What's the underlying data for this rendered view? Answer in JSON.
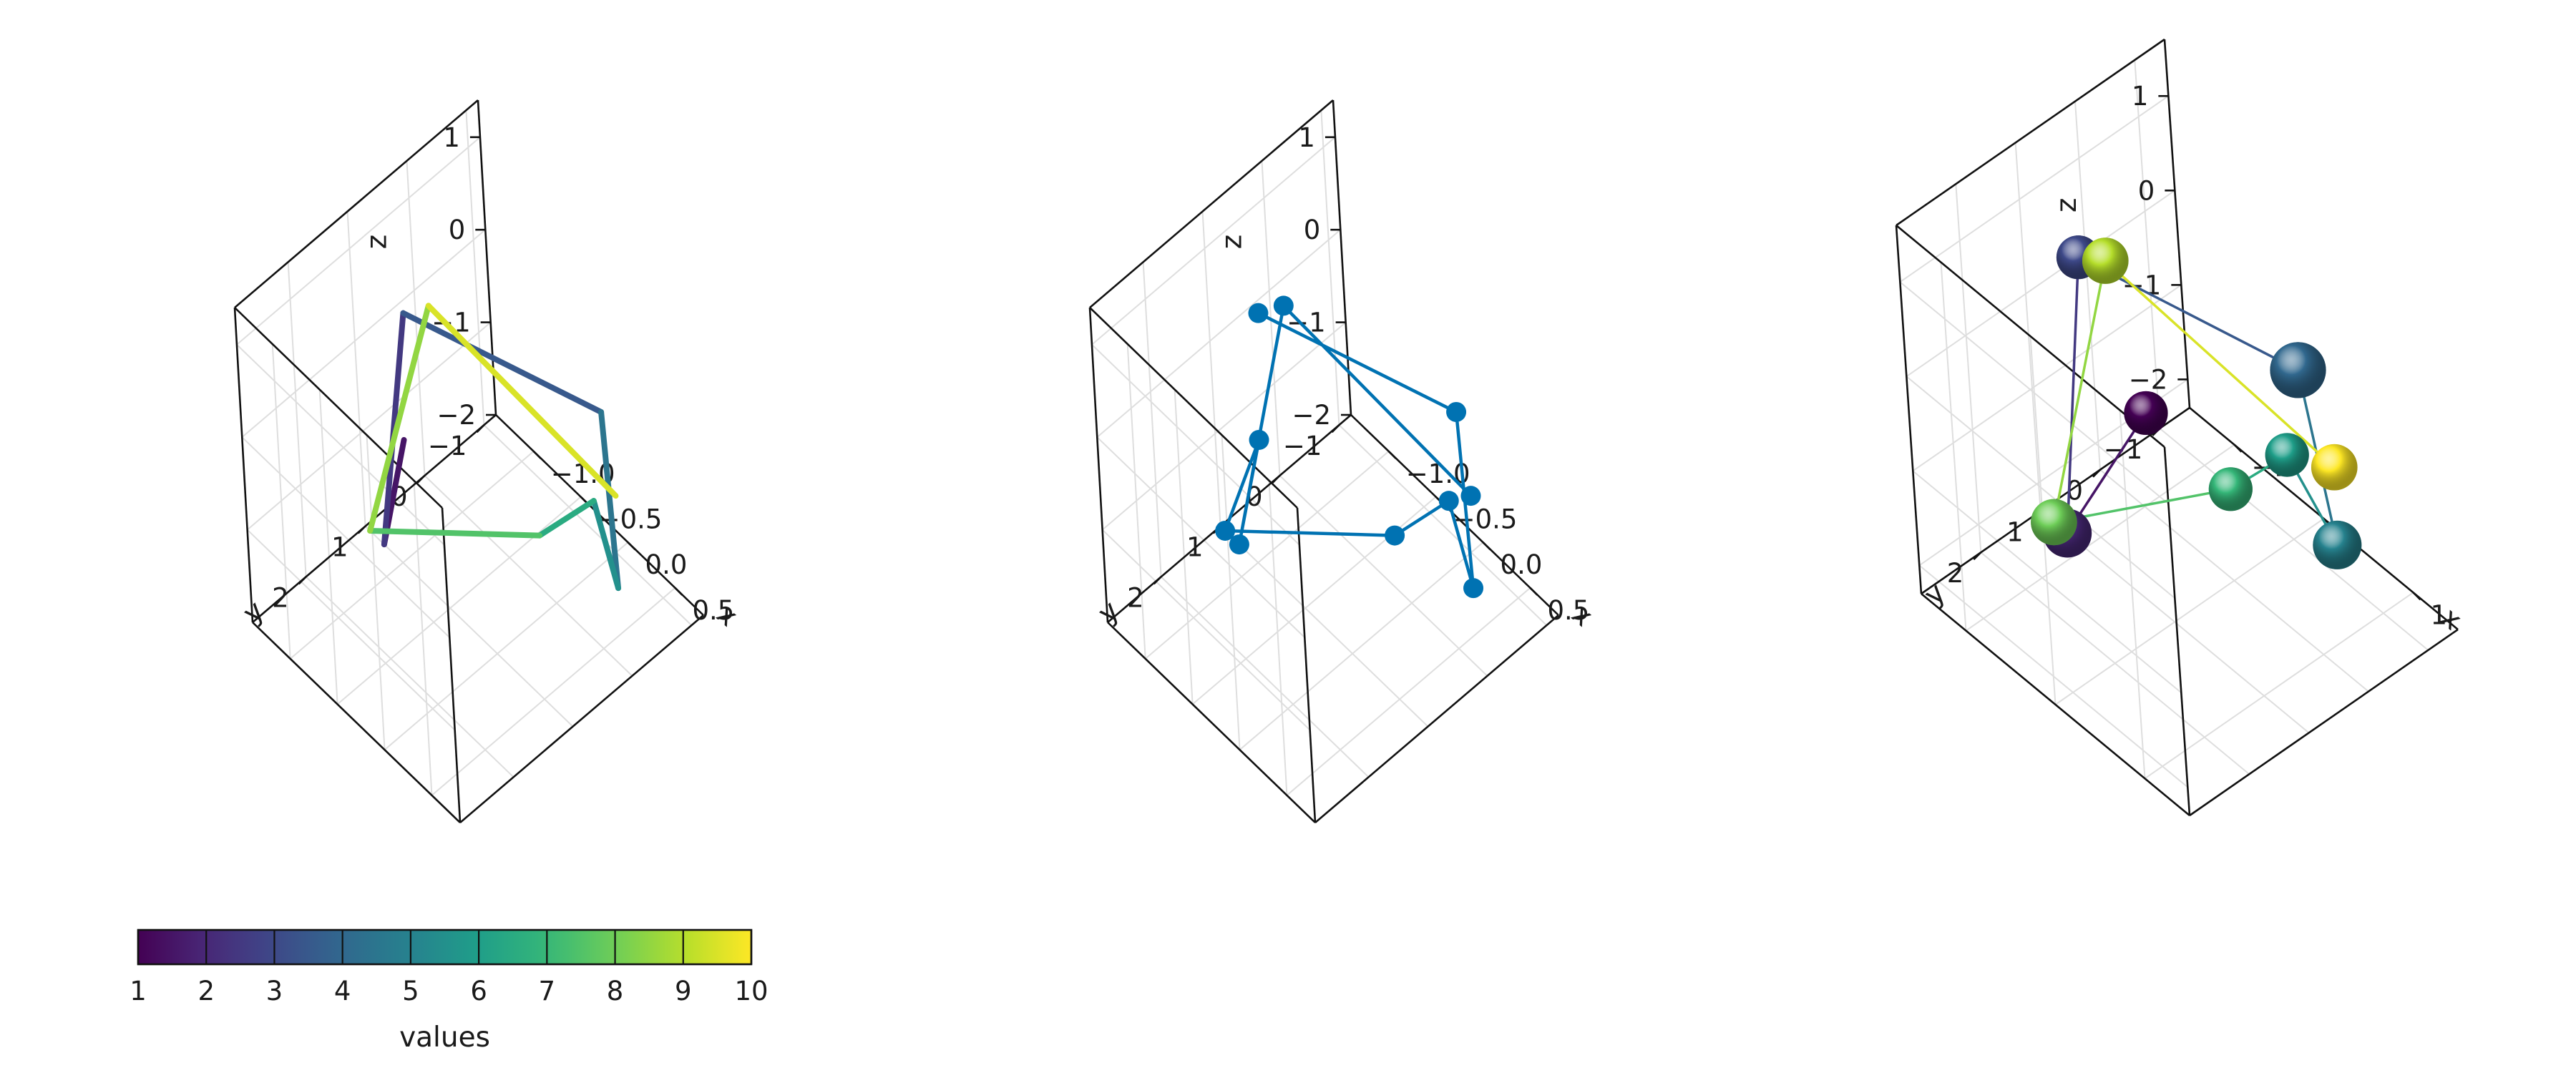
{
  "colors": {
    "scatter_blue": "#0072b2",
    "viridis": [
      "#440154",
      "#482878",
      "#3e4989",
      "#31688e",
      "#26828e",
      "#1f9e89",
      "#35b779",
      "#6ece58",
      "#b5de2b",
      "#fde725"
    ]
  },
  "chart_data": [
    {
      "type": "line3d",
      "panel": "left",
      "xlabel": "x",
      "ylabel": "y",
      "zlabel": "z",
      "xlim": [
        -1.4,
        0.8
      ],
      "ylim": [
        -1.2,
        2.9
      ],
      "zlim": [
        -2.0,
        1.4
      ],
      "xticks": [
        -1.0,
        -0.5,
        0.0,
        0.5
      ],
      "xtick_labels": [
        "−1.0",
        "−0.5",
        "0.0",
        "0.5"
      ],
      "yticks": [
        -1,
        0,
        1,
        2
      ],
      "ytick_labels": [
        "−1",
        "0",
        "1",
        "2"
      ],
      "zticks": [
        -2,
        -1,
        0,
        1
      ],
      "ztick_labels": [
        "−2",
        "−1",
        "0",
        "1"
      ],
      "colorbar": {
        "label": "values",
        "range": [
          1,
          10
        ],
        "ticks": [
          1,
          2,
          3,
          4,
          5,
          6,
          7,
          8,
          9,
          10
        ],
        "tick_labels": [
          "1",
          "2",
          "3",
          "4",
          "5",
          "6",
          "7",
          "8",
          "9",
          "10"
        ]
      },
      "points": [
        {
          "x": 0.1,
          "y": 2.45,
          "z": 1.2,
          "value": 1
        },
        {
          "x": -1.2,
          "y": 1.0,
          "z": -2.0,
          "value": 2
        },
        {
          "x": -0.7,
          "y": 1.2,
          "z": 1.1,
          "value": 3
        },
        {
          "x": 0.55,
          "y": -0.1,
          "z": 0.55,
          "value": 4
        },
        {
          "x": 0.7,
          "y": 0.0,
          "z": -1.15,
          "value": 5
        },
        {
          "x": 0.55,
          "y": 0.1,
          "z": -0.3,
          "value": 6
        },
        {
          "x": 0.2,
          "y": 0.5,
          "z": -0.8,
          "value": 7
        },
        {
          "x": -1.35,
          "y": 1.0,
          "z": -2.0,
          "value": 8
        },
        {
          "x": -0.9,
          "y": 0.5,
          "z": 0.6,
          "value": 9
        },
        {
          "x": 0.8,
          "y": 0.1,
          "z": 0.0,
          "value": 10
        }
      ]
    },
    {
      "type": "scatterlines3d",
      "panel": "middle",
      "xlabel": "x",
      "ylabel": "y",
      "zlabel": "z",
      "xlim": [
        -1.4,
        0.8
      ],
      "ylim": [
        -1.2,
        2.9
      ],
      "zlim": [
        -2.0,
        1.4
      ],
      "xticks": [
        -1.0,
        -0.5,
        0.0,
        0.5
      ],
      "xtick_labels": [
        "−1.0",
        "−0.5",
        "0.0",
        "0.5"
      ],
      "yticks": [
        -1,
        0,
        1,
        2
      ],
      "ytick_labels": [
        "−1",
        "0",
        "1",
        "2"
      ],
      "zticks": [
        -2,
        -1,
        0,
        1
      ],
      "ztick_labels": [
        "−2",
        "−1",
        "0",
        "1"
      ],
      "points": [
        {
          "x": -0.7,
          "y": 1.2,
          "z": 1.1
        },
        {
          "x": 0.55,
          "y": -0.1,
          "z": 0.55
        },
        {
          "x": 0.7,
          "y": 0.0,
          "z": -1.15
        },
        {
          "x": 0.55,
          "y": 0.1,
          "z": -0.3
        },
        {
          "x": 0.2,
          "y": 0.5,
          "z": -0.8
        },
        {
          "x": -1.35,
          "y": 1.0,
          "z": -2.0
        },
        {
          "x": 0.1,
          "y": 2.45,
          "z": 1.2
        },
        {
          "x": -1.2,
          "y": 1.0,
          "z": -2.0
        },
        {
          "x": -0.9,
          "y": 0.5,
          "z": 0.6
        },
        {
          "x": 0.8,
          "y": 0.1,
          "z": 0.0
        }
      ]
    },
    {
      "type": "meshscatter3d",
      "panel": "right",
      "xlabel": "x",
      "ylabel": "y",
      "zlabel": "z",
      "xlim": [
        -1.5,
        1.5
      ],
      "ylim": [
        -1.5,
        3.0
      ],
      "zlim": [
        -2.3,
        1.6
      ],
      "xticks": [
        -1,
        0,
        1
      ],
      "xtick_labels": [
        "−1",
        "0",
        "1"
      ],
      "yticks": [
        -1,
        0,
        1,
        2
      ],
      "ytick_labels": [
        "−1",
        "0",
        "1",
        "2"
      ],
      "zticks": [
        -2,
        -1,
        0,
        1
      ],
      "ztick_labels": [
        "−2",
        "−1",
        "0",
        "1"
      ],
      "points": [
        {
          "x": 0.9,
          "y": 2.45,
          "z": 1.25,
          "value": 1,
          "size": 0.9
        },
        {
          "x": -1.2,
          "y": 1.0,
          "z": -2.3,
          "value": 2,
          "size": 1.0
        },
        {
          "x": -0.7,
          "y": 1.2,
          "z": 1.1,
          "value": 3,
          "size": 0.9
        },
        {
          "x": 0.85,
          "y": -0.1,
          "z": 0.55,
          "value": 4,
          "size": 1.15
        },
        {
          "x": 1.1,
          "y": -0.2,
          "z": -1.15,
          "value": 5,
          "size": 1.0
        },
        {
          "x": 0.8,
          "y": 0.1,
          "z": -0.3,
          "value": 6,
          "size": 0.9
        },
        {
          "x": 0.4,
          "y": 0.5,
          "z": -0.8,
          "value": 7,
          "size": 0.9
        },
        {
          "x": -1.35,
          "y": 1.0,
          "z": -2.3,
          "value": 8,
          "size": 0.95
        },
        {
          "x": -0.9,
          "y": 0.5,
          "z": 0.6,
          "value": 9,
          "size": 0.95
        },
        {
          "x": 1.35,
          "y": 0.1,
          "z": 0.0,
          "value": 10,
          "size": 0.95
        }
      ]
    }
  ]
}
